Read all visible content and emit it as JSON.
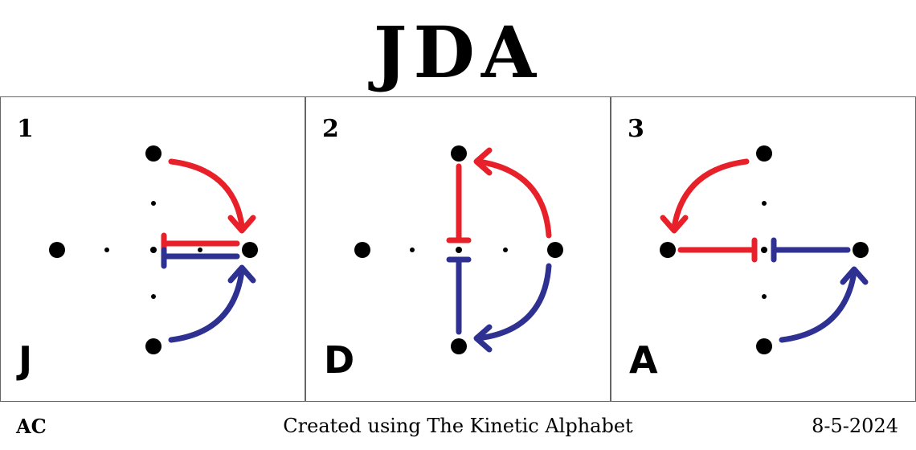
{
  "title": "JDA",
  "panels": [
    {
      "number": "1",
      "letter": "J"
    },
    {
      "number": "2",
      "letter": "D"
    },
    {
      "number": "3",
      "letter": "A"
    }
  ],
  "footer": {
    "author": "AC",
    "credit": "Created using The Kinetic Alphabet",
    "date": "8-5-2024"
  },
  "colors": {
    "red": "#e8202a",
    "blue": "#2e3192",
    "dot": "#000000"
  }
}
